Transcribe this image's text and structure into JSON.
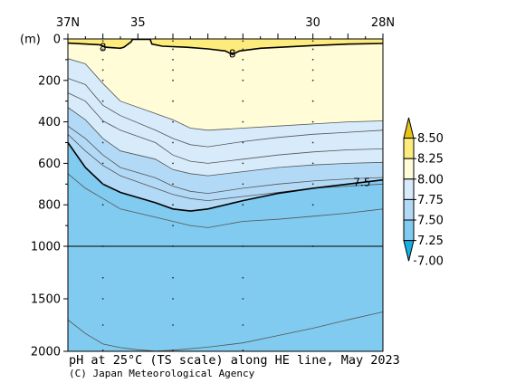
{
  "chart_data": {
    "type": "contour",
    "title": "pH at 25°C (TS scale) along HE line, May 2023",
    "credit": "(C) Japan Meteorological Agency",
    "ylabel": "(m)",
    "x_ticks": [
      "37N",
      "35",
      "30",
      "28N"
    ],
    "y_ticks": [
      "0",
      "200",
      "400",
      "600",
      "800",
      "1000",
      "1500",
      "2000"
    ],
    "ylim": [
      0,
      2000
    ],
    "y_scale_note": "depth axis stretched 0-1000 m, compressed 1000-2000 m",
    "contour_levels": [
      7.0,
      7.25,
      7.5,
      7.75,
      8.0,
      8.25,
      8.5
    ],
    "colorbar": {
      "labels": [
        "8.50",
        "8.25",
        "8.00",
        "7.75",
        "7.50",
        "7.25",
        "7.00"
      ],
      "colors": [
        "#e8c31a",
        "#fdeb7d",
        "#fffcd7",
        "#d7ebfb",
        "#b2daf7",
        "#80cbef",
        "#16b0e6"
      ]
    },
    "contour_labels": [
      {
        "text": "8",
        "lat": 36.0,
        "depth": 40
      },
      {
        "text": "8",
        "lat": 32.3,
        "depth": 70
      },
      {
        "text": "7.5",
        "lat": 28.6,
        "depth": 690
      }
    ],
    "contours": [
      {
        "level": 8.0,
        "pts": [
          [
            37,
            95
          ],
          [
            36.5,
            120
          ],
          [
            36,
            215
          ],
          [
            35.5,
            300
          ],
          [
            34.5,
            360
          ],
          [
            34,
            390
          ],
          [
            33.5,
            430
          ],
          [
            33,
            440
          ],
          [
            32,
            430
          ],
          [
            31,
            420
          ],
          [
            30,
            410
          ],
          [
            29,
            400
          ],
          [
            28,
            395
          ]
        ]
      },
      {
        "level": 7.9,
        "pts": [
          [
            37,
            190
          ],
          [
            36.5,
            220
          ],
          [
            36,
            320
          ],
          [
            35.5,
            370
          ],
          [
            34.5,
            440
          ],
          [
            34,
            480
          ],
          [
            33.5,
            510
          ],
          [
            33,
            520
          ],
          [
            32,
            495
          ],
          [
            31,
            475
          ],
          [
            30,
            460
          ],
          [
            29,
            450
          ],
          [
            28,
            440
          ]
        ]
      },
      {
        "level": 7.8,
        "pts": [
          [
            37,
            260
          ],
          [
            36.5,
            300
          ],
          [
            36,
            395
          ],
          [
            35.5,
            440
          ],
          [
            34.5,
            500
          ],
          [
            34,
            560
          ],
          [
            33.5,
            590
          ],
          [
            33,
            600
          ],
          [
            32,
            580
          ],
          [
            31,
            560
          ],
          [
            30,
            545
          ],
          [
            29,
            535
          ],
          [
            28,
            530
          ]
        ]
      },
      {
        "level": 7.75,
        "pts": [
          [
            37,
            330
          ],
          [
            36.5,
            390
          ],
          [
            36,
            480
          ],
          [
            35.5,
            540
          ],
          [
            34.5,
            580
          ],
          [
            34,
            630
          ],
          [
            33.5,
            650
          ],
          [
            33,
            660
          ],
          [
            32,
            640
          ],
          [
            31,
            620
          ],
          [
            30,
            608
          ],
          [
            29,
            600
          ],
          [
            28,
            595
          ]
        ]
      },
      {
        "level": 7.65,
        "pts": [
          [
            37,
            420
          ],
          [
            36.5,
            480
          ],
          [
            36,
            560
          ],
          [
            35.5,
            620
          ],
          [
            34.5,
            670
          ],
          [
            34,
            710
          ],
          [
            33.5,
            735
          ],
          [
            33,
            745
          ],
          [
            32,
            720
          ],
          [
            31,
            700
          ],
          [
            30,
            685
          ],
          [
            29,
            675
          ],
          [
            28,
            668
          ]
        ]
      },
      {
        "level": 7.6,
        "pts": [
          [
            37,
            460
          ],
          [
            36.5,
            540
          ],
          [
            36,
            610
          ],
          [
            35.5,
            660
          ],
          [
            34.5,
            720
          ],
          [
            34,
            750
          ],
          [
            33.5,
            770
          ],
          [
            33,
            780
          ],
          [
            32,
            760
          ],
          [
            31,
            740
          ],
          [
            30,
            720
          ],
          [
            29,
            710
          ],
          [
            28,
            700
          ]
        ]
      },
      {
        "level": 7.45,
        "pts": [
          [
            37,
            650
          ],
          [
            36.5,
            720
          ],
          [
            36,
            770
          ],
          [
            35.5,
            820
          ],
          [
            34.5,
            860
          ],
          [
            34,
            880
          ],
          [
            33.5,
            900
          ],
          [
            33,
            910
          ],
          [
            32,
            880
          ],
          [
            31,
            870
          ],
          [
            30,
            855
          ],
          [
            29,
            840
          ],
          [
            28,
            820
          ]
        ]
      },
      {
        "level": 7.35,
        "pts": [
          [
            37,
            1700
          ],
          [
            36.5,
            1830
          ],
          [
            36,
            1930
          ],
          [
            35.5,
            1965
          ],
          [
            35,
            1985
          ],
          [
            34.5,
            1998
          ],
          [
            34,
            1990
          ],
          [
            33,
            1960
          ],
          [
            32,
            1920
          ],
          [
            31,
            1850
          ],
          [
            30,
            1780
          ],
          [
            29,
            1700
          ],
          [
            28,
            1625
          ]
        ]
      }
    ],
    "contour_7_5": [
      [
        37,
        500
      ],
      [
        36.5,
        620
      ],
      [
        36,
        700
      ],
      [
        35.5,
        740
      ],
      [
        34.5,
        790
      ],
      [
        34,
        820
      ],
      [
        33.5,
        830
      ],
      [
        33,
        820
      ],
      [
        32,
        780
      ],
      [
        31,
        745
      ],
      [
        30,
        720
      ],
      [
        29,
        700
      ],
      [
        28,
        680
      ]
    ],
    "contour_8_surface": [
      [
        37,
        20
      ],
      [
        36.1,
        28
      ],
      [
        35.9,
        40
      ],
      [
        35.5,
        45
      ],
      [
        35.4,
        40
      ],
      [
        35.2,
        15
      ],
      [
        35.15,
        2
      ],
      [
        34.65,
        2
      ],
      [
        34.6,
        25
      ],
      [
        34.3,
        35
      ],
      [
        33.6,
        40
      ],
      [
        33.0,
        48
      ],
      [
        32.5,
        58
      ],
      [
        32.3,
        75
      ],
      [
        32.1,
        58
      ],
      [
        31.5,
        45
      ],
      [
        30,
        32
      ],
      [
        29,
        25
      ],
      [
        28,
        22
      ]
    ],
    "station_lats": [
      36.0,
      34.0,
      32.0,
      30.0
    ],
    "sample_depths": [
      [
        10,
        50,
        100,
        150,
        200,
        300,
        400,
        500,
        600,
        700,
        800,
        1000,
        1300,
        1500,
        1750,
        1990
      ],
      [
        10,
        50,
        100,
        150,
        200,
        300,
        400,
        500,
        600,
        700,
        800,
        900,
        1000,
        1300,
        1500,
        1750,
        1990
      ],
      [
        10,
        50,
        100,
        150,
        200,
        300,
        400,
        500,
        600,
        700,
        800,
        1000,
        1300,
        1500,
        1750,
        1990
      ],
      [
        10,
        50,
        100,
        150,
        200,
        300,
        400,
        500,
        600,
        700,
        800,
        1000
      ]
    ]
  }
}
